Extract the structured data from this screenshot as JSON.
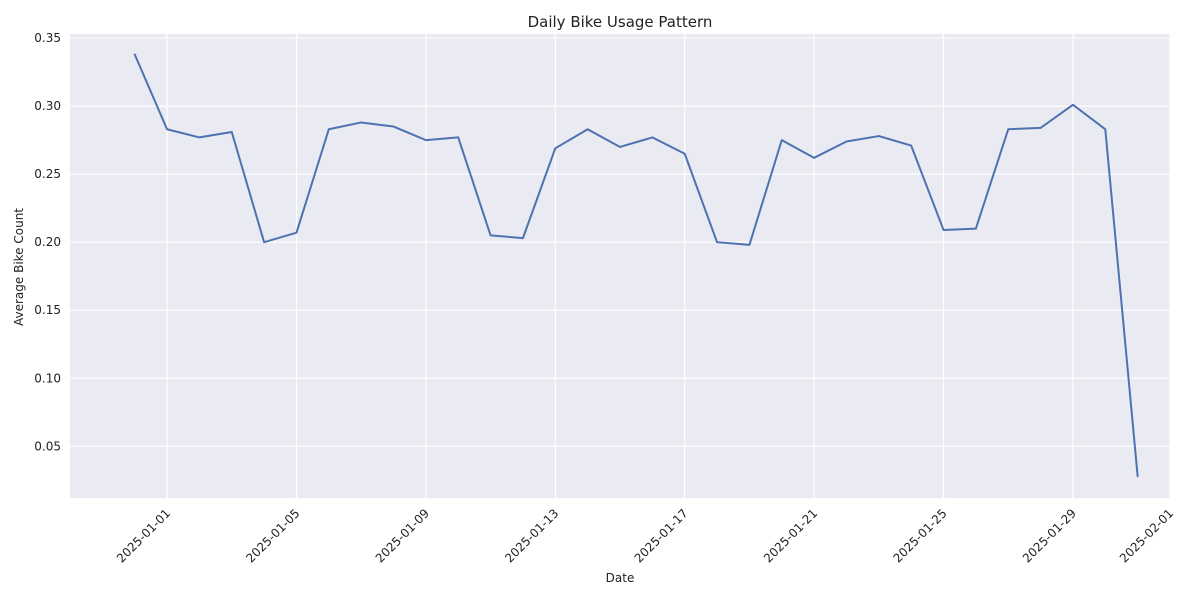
{
  "chart_data": {
    "type": "line",
    "title": "Daily Bike Usage Pattern",
    "xlabel": "Date",
    "ylabel": "Average Bike Count",
    "x": [
      "2024-12-31",
      "2025-01-01",
      "2025-01-02",
      "2025-01-03",
      "2025-01-04",
      "2025-01-05",
      "2025-01-06",
      "2025-01-07",
      "2025-01-08",
      "2025-01-09",
      "2025-01-10",
      "2025-01-11",
      "2025-01-12",
      "2025-01-13",
      "2025-01-14",
      "2025-01-15",
      "2025-01-16",
      "2025-01-17",
      "2025-01-18",
      "2025-01-19",
      "2025-01-20",
      "2025-01-21",
      "2025-01-22",
      "2025-01-23",
      "2025-01-24",
      "2025-01-25",
      "2025-01-26",
      "2025-01-27",
      "2025-01-28",
      "2025-01-29",
      "2025-01-30",
      "2025-01-31"
    ],
    "series": [
      {
        "values": [
          0.338,
          0.283,
          0.277,
          0.281,
          0.2,
          0.207,
          0.283,
          0.288,
          0.285,
          0.275,
          0.277,
          0.205,
          0.203,
          0.269,
          0.283,
          0.27,
          0.277,
          0.265,
          0.2,
          0.198,
          0.275,
          0.262,
          0.274,
          0.278,
          0.271,
          0.209,
          0.21,
          0.283,
          0.284,
          0.301,
          0.283,
          0.028
        ],
        "color": "#4c72b0"
      }
    ],
    "xlim": [
      "2024-12-29",
      "2025-02-01"
    ],
    "ylim": [
      0.012,
      0.353
    ],
    "x_ticks": [
      "2025-01-01",
      "2025-01-05",
      "2025-01-09",
      "2025-01-13",
      "2025-01-17",
      "2025-01-21",
      "2025-01-25",
      "2025-01-29",
      "2025-02-01"
    ],
    "y_ticks": [
      "0.05",
      "0.10",
      "0.15",
      "0.20",
      "0.25",
      "0.30",
      "0.35"
    ],
    "grid": true,
    "background_color": "#eaeaf2",
    "grid_color": "#ffffff"
  }
}
